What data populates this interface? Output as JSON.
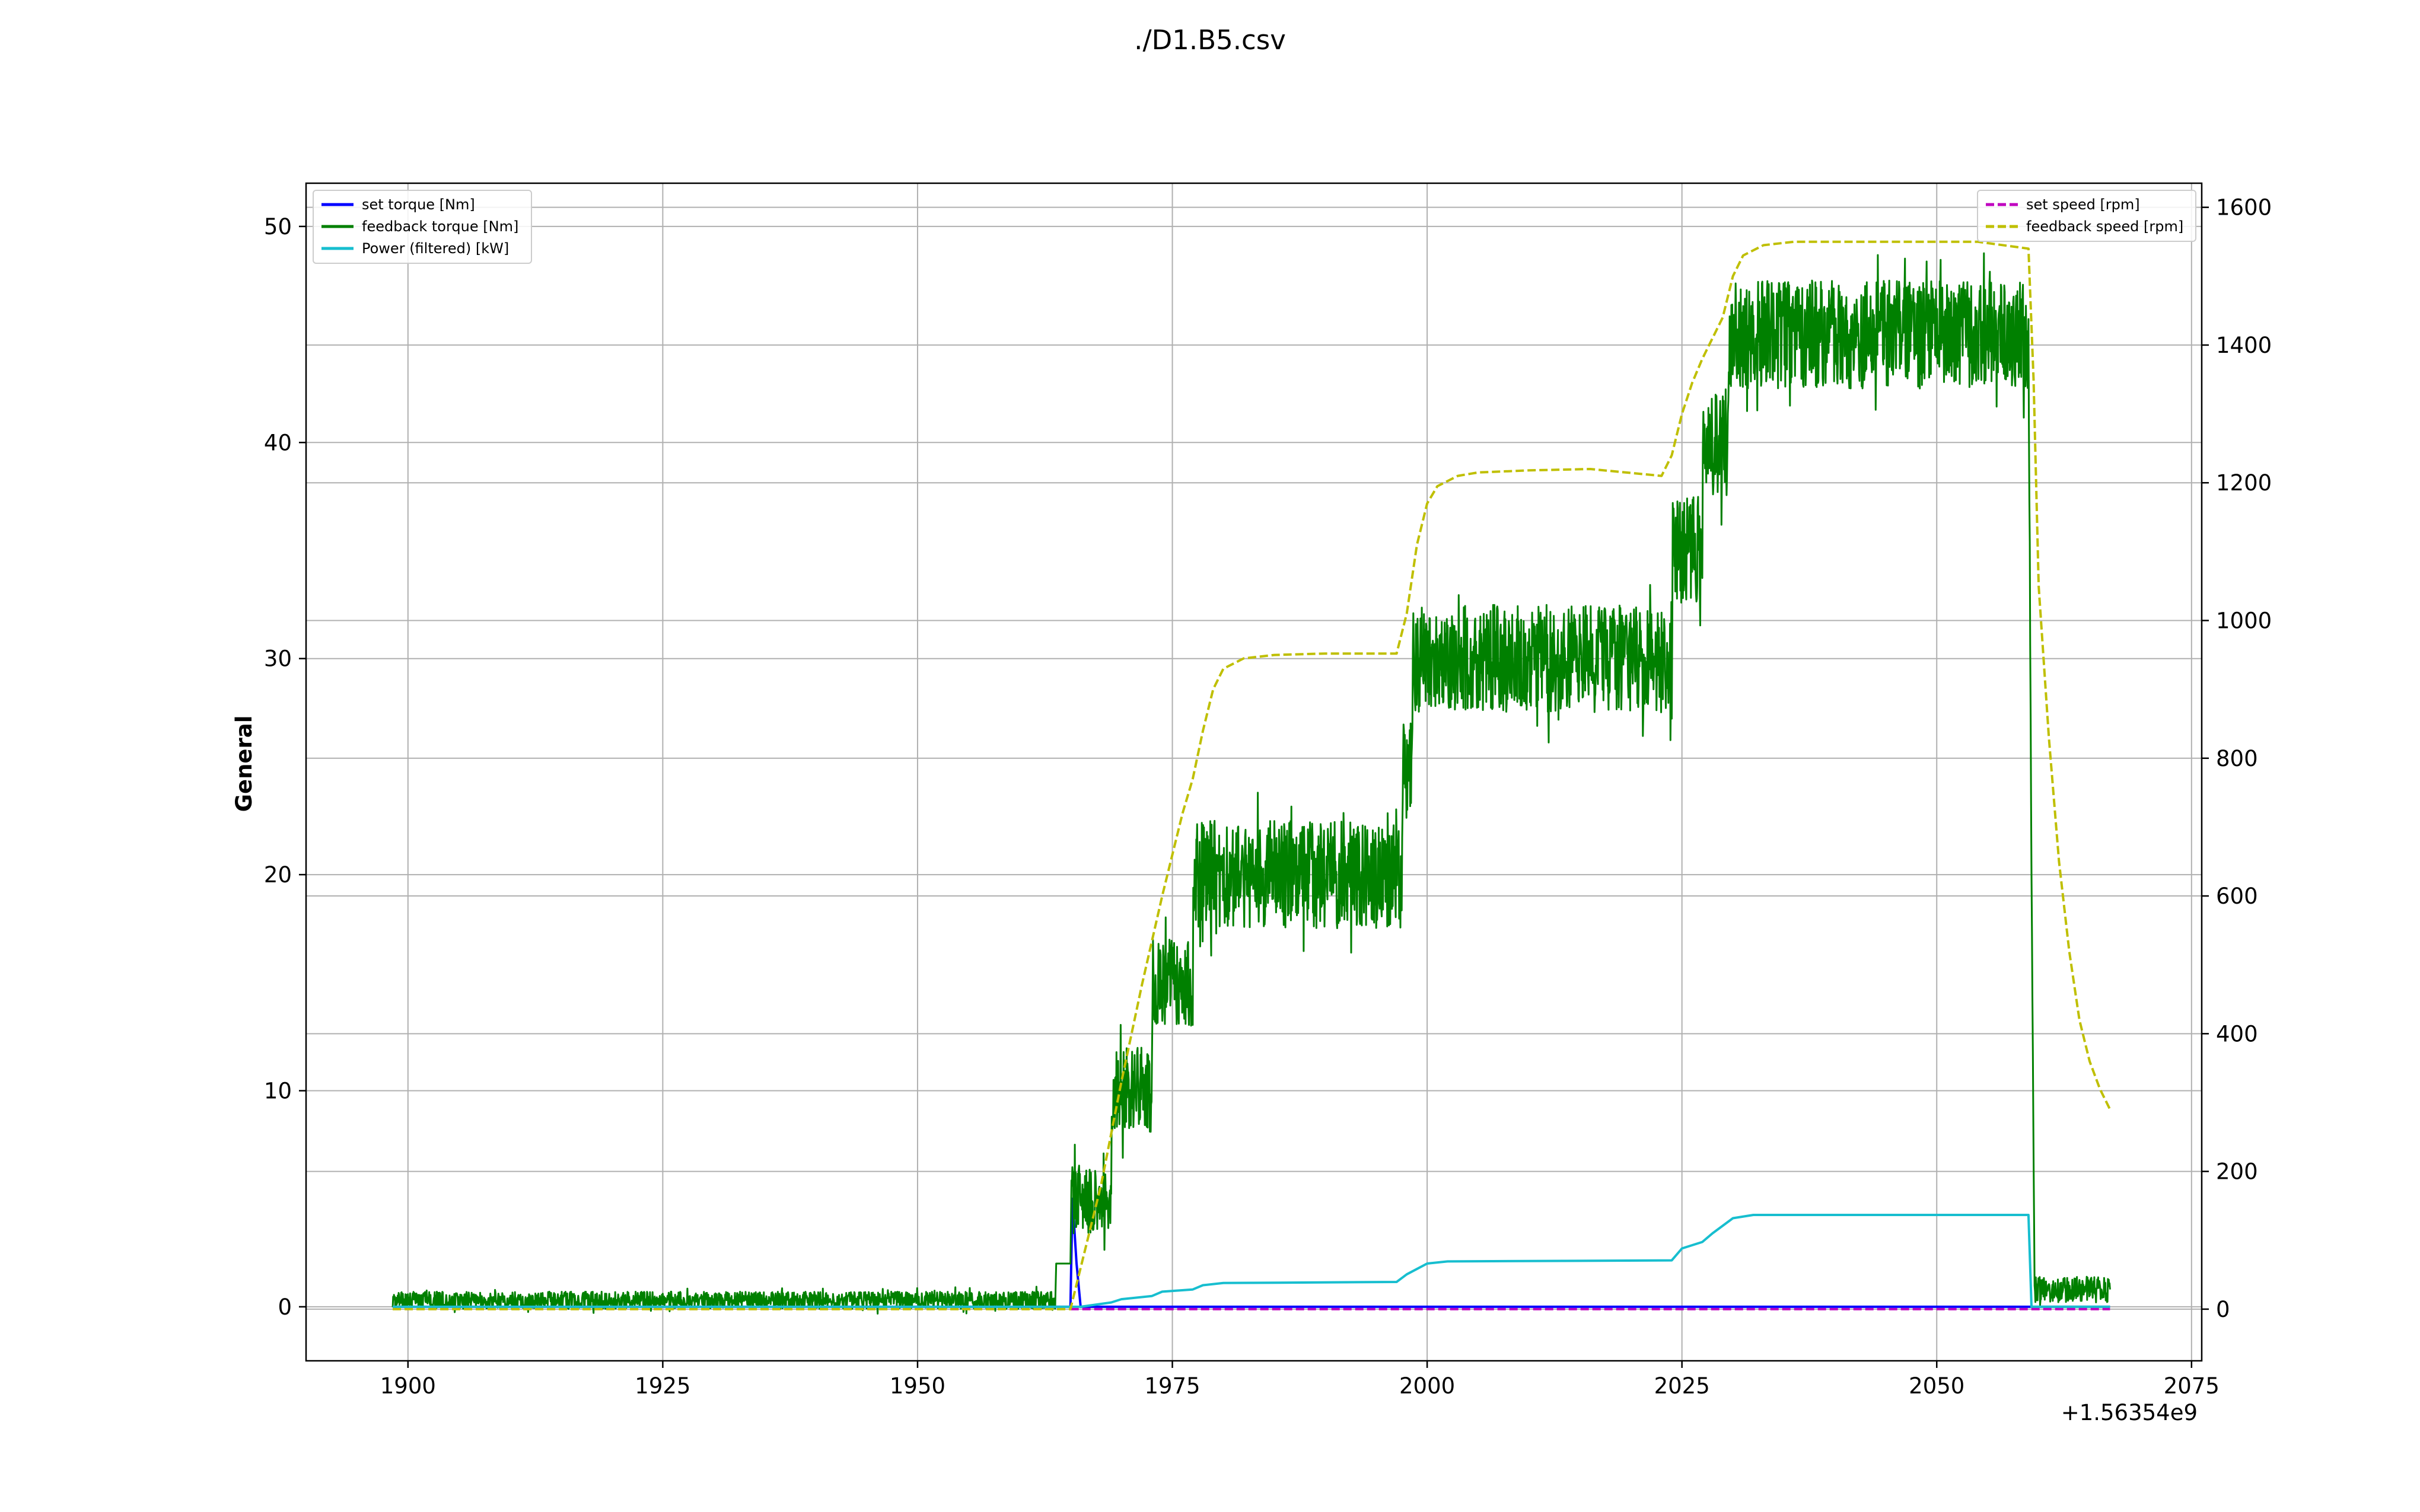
{
  "chart_data": {
    "type": "line",
    "title": "./D1.B5.csv",
    "xlabel": "",
    "ylabel": "General",
    "y2label": "",
    "x_offset_label": "+1.56354e9",
    "xlim": [
      1890,
      2076
    ],
    "ylim": [
      -2.5,
      52
    ],
    "y2lim": [
      -75,
      1635
    ],
    "x_ticks": [
      1900,
      1925,
      1950,
      1975,
      2000,
      2025,
      2050,
      2075
    ],
    "y_ticks": [
      0,
      10,
      20,
      30,
      40,
      50
    ],
    "y2_ticks": [
      0,
      200,
      400,
      600,
      800,
      1000,
      1200,
      1400,
      1600
    ],
    "grid": true,
    "legend_left_placement": "upper left",
    "legend_right_placement": "upper right",
    "series": [
      {
        "name": "set torque [Nm]",
        "axis": "left",
        "color": "#0000ff",
        "style": "solid",
        "x": [
          1898.5,
          1965.0,
          1965.2,
          1965.6,
          1966.0,
          2059.2,
          2059.4,
          2067.0
        ],
        "y": [
          0,
          0,
          5,
          2,
          0,
          0,
          0,
          0
        ]
      },
      {
        "name": "feedback torque [Nm]",
        "axis": "left",
        "color": "#008000",
        "style": "solid",
        "noisy": true,
        "x": [
          1898.5,
          1963.5,
          1963.6,
          1965.0,
          1965.1,
          1969.0,
          1969.1,
          1973.0,
          1973.1,
          1977.0,
          1977.1,
          1997.5,
          1997.6,
          1998.5,
          1998.6,
          2024.0,
          2024.1,
          2027.0,
          2027.1,
          2029.5,
          2029.6,
          2059.0,
          2059.3,
          2059.6,
          2067.0
        ],
        "y": [
          0.3,
          0.3,
          2.0,
          2.0,
          5.0,
          5.0,
          10.0,
          10.0,
          15.0,
          15.0,
          20.0,
          20.0,
          25.0,
          25.0,
          30.0,
          30.0,
          35.0,
          35.0,
          40.0,
          40.0,
          45.0,
          45.0,
          20.0,
          0.8,
          0.8
        ],
        "noise": [
          0.4,
          0.4,
          0,
          0,
          1.6,
          1.6,
          2.0,
          2.0,
          2.0,
          2.0,
          2.5,
          2.5,
          2.5,
          2.5,
          2.5,
          2.5,
          2.5,
          2.5,
          2.5,
          2.5,
          2.5,
          2.5,
          0,
          0.6,
          0.6
        ]
      },
      {
        "name": "Power (filtered) [kW]",
        "axis": "left",
        "color": "#17becf",
        "style": "solid",
        "x": [
          1898.5,
          1966.0,
          1969.0,
          1970.0,
          1973.0,
          1974.0,
          1977.0,
          1978.0,
          1980.0,
          1997.0,
          1998.0,
          2000.0,
          2002.0,
          2024.0,
          2025.0,
          2027.0,
          2028.0,
          2030.0,
          2032.0,
          2059.0,
          2059.3,
          2067.0
        ],
        "y": [
          0,
          0,
          0.2,
          0.35,
          0.5,
          0.7,
          0.8,
          1.0,
          1.1,
          1.15,
          1.5,
          2.0,
          2.1,
          2.15,
          2.7,
          3.0,
          3.4,
          4.1,
          4.25,
          4.25,
          0,
          0
        ]
      },
      {
        "name": "set speed [rpm]",
        "axis": "right",
        "color": "#bf00bf",
        "style": "dashed",
        "x": [
          1965.0,
          2067.0
        ],
        "y": [
          0,
          0
        ]
      },
      {
        "name": "feedback speed [rpm]",
        "axis": "right",
        "color": "#bfbf00",
        "style": "dashed",
        "x": [
          1898.5,
          1965.0,
          1966.0,
          1968.0,
          1970.0,
          1972.0,
          1974.0,
          1976.0,
          1977.0,
          1978.0,
          1979.0,
          1980.0,
          1982.0,
          1985.0,
          1990.0,
          1997.0,
          1998.0,
          1999.0,
          2000.0,
          2001.0,
          2003.0,
          2005.0,
          2010.0,
          2016.0,
          2023.0,
          2024.0,
          2025.0,
          2026.0,
          2027.0,
          2028.0,
          2029.0,
          2030.0,
          2031.0,
          2033.0,
          2036.0,
          2045.0,
          2054.0,
          2059.0,
          2059.5,
          2060.0,
          2061.0,
          2062.0,
          2063.0,
          2064.0,
          2065.0,
          2066.0,
          2067.0
        ],
        "y": [
          0,
          0,
          60,
          180,
          330,
          470,
          600,
          720,
          770,
          840,
          900,
          930,
          945,
          950,
          952,
          952,
          1010,
          1110,
          1170,
          1195,
          1210,
          1215,
          1218,
          1220,
          1210,
          1240,
          1300,
          1345,
          1380,
          1410,
          1440,
          1500,
          1530,
          1545,
          1550,
          1550,
          1550,
          1540,
          1350,
          1050,
          830,
          650,
          520,
          420,
          360,
          320,
          290
        ]
      }
    ]
  }
}
